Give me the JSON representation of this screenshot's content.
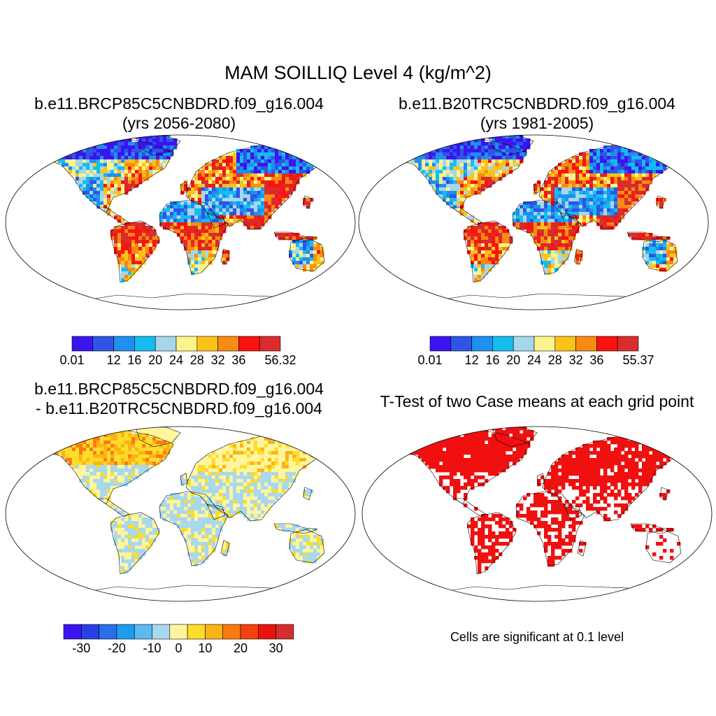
{
  "title": "MAM SOILLIQ Level 4 (kg/m^2)",
  "panels": [
    {
      "id": "p1",
      "title_line1": "b.e11.BRCP85C5CNBDRD.f09_g16.004",
      "title_line2": "(yrs 2056-2080)",
      "type": "absolute",
      "colorbar": {
        "colors": [
          "#3b14f0",
          "#2f55e6",
          "#1f8ff0",
          "#14bdf0",
          "#a6d6ea",
          "#fbf38c",
          "#fbc219",
          "#f98a12",
          "#fa120f",
          "#d92c2c"
        ],
        "labels": [
          "0.01",
          "12",
          "16",
          "20",
          "24",
          "28",
          "32",
          "36",
          "56.32"
        ],
        "label_positions": [
          0,
          2,
          3,
          4,
          5,
          6,
          7,
          8,
          10
        ]
      }
    },
    {
      "id": "p2",
      "title_line1": "b.e11.B20TRC5CNBDRD.f09_g16.004",
      "title_line2": "(yrs 1981-2005)",
      "type": "absolute",
      "colorbar": {
        "colors": [
          "#3b14f0",
          "#2f55e6",
          "#1f8ff0",
          "#14bdf0",
          "#a6d6ea",
          "#fbf38c",
          "#fbc219",
          "#f98a12",
          "#fa120f",
          "#d92c2c"
        ],
        "labels": [
          "0.01",
          "12",
          "16",
          "20",
          "24",
          "28",
          "32",
          "36",
          "55.37"
        ],
        "label_positions": [
          0,
          2,
          3,
          4,
          5,
          6,
          7,
          8,
          10
        ]
      }
    },
    {
      "id": "p3",
      "title_line1": "b.e11.BRCP85C5CNBDRD.f09_g16.004",
      "title_line2": "- b.e11.B20TRC5CNBDRD.f09_g16.004",
      "type": "difference",
      "colorbar": {
        "colors": [
          "#3b14f0",
          "#2a3fe6",
          "#2a6fe8",
          "#1e9cf0",
          "#5cbaf0",
          "#a8d8ee",
          "#fff59d",
          "#fddc2a",
          "#fbb414",
          "#fa7a10",
          "#f5410f",
          "#e8130f",
          "#d62d2d"
        ],
        "labels": [
          "-30",
          "-20",
          "-10",
          "0",
          "10",
          "20",
          "30"
        ],
        "label_positions": [
          1,
          3,
          5,
          6.5,
          8,
          10,
          12
        ]
      }
    },
    {
      "id": "p4",
      "title_line1": "T-Test of two Case means at each grid point",
      "caption": "Cells are significant at 0.1 level",
      "type": "significance",
      "sig_color": "#f01010"
    }
  ],
  "colors": {
    "coastline": "#000000",
    "frame": "#000000",
    "background": "#ffffff"
  }
}
